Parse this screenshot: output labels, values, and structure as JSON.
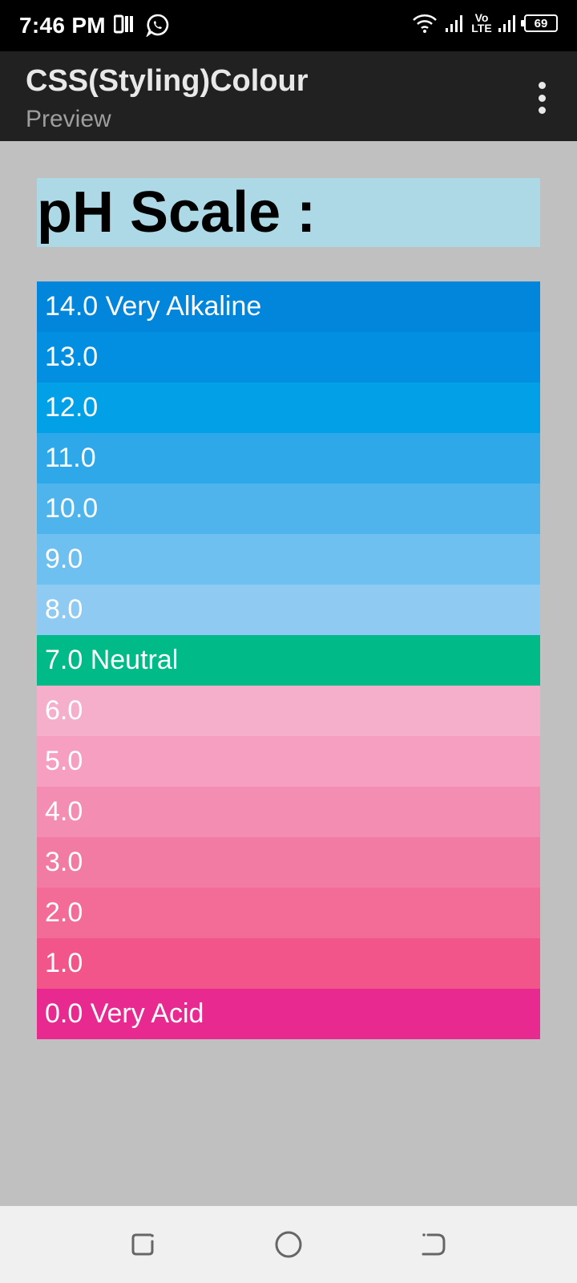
{
  "status_bar": {
    "time": "7:46 PM",
    "network": "Vo LTE",
    "volte_top": "Vo",
    "volte_bottom": "LTE",
    "battery": "69"
  },
  "app_bar": {
    "title": "CSS(Styling)Colour",
    "subtitle": "Preview"
  },
  "content": {
    "heading": "pH Scale :",
    "heading_bg": "#add8e6",
    "page_bg": "#c0c0c0",
    "rows": [
      {
        "label": "14.0 Very Alkaline",
        "color": "#0286dc"
      },
      {
        "label": "13.0",
        "color": "#028fe1"
      },
      {
        "label": "12.0",
        "color": "#02a0e6"
      },
      {
        "label": "11.0",
        "color": "#2ea8e9"
      },
      {
        "label": "10.0",
        "color": "#50b4ec"
      },
      {
        "label": "9.0",
        "color": "#6dc0f0"
      },
      {
        "label": "8.0",
        "color": "#8ecaf1"
      },
      {
        "label": "7.0 Neutral",
        "color": "#00bb88"
      },
      {
        "label": "6.0",
        "color": "#f5afcb"
      },
      {
        "label": "5.0",
        "color": "#f69fc0"
      },
      {
        "label": "4.0",
        "color": "#f48db2"
      },
      {
        "label": "3.0",
        "color": "#f27ba4"
      },
      {
        "label": "2.0",
        "color": "#f36b97"
      },
      {
        "label": "1.0",
        "color": "#f25589"
      },
      {
        "label": "0.0 Very Acid",
        "color": "#e82a90"
      }
    ]
  },
  "nav_bar": {
    "buttons": [
      "recent-apps-icon",
      "home-icon",
      "back-icon"
    ]
  }
}
